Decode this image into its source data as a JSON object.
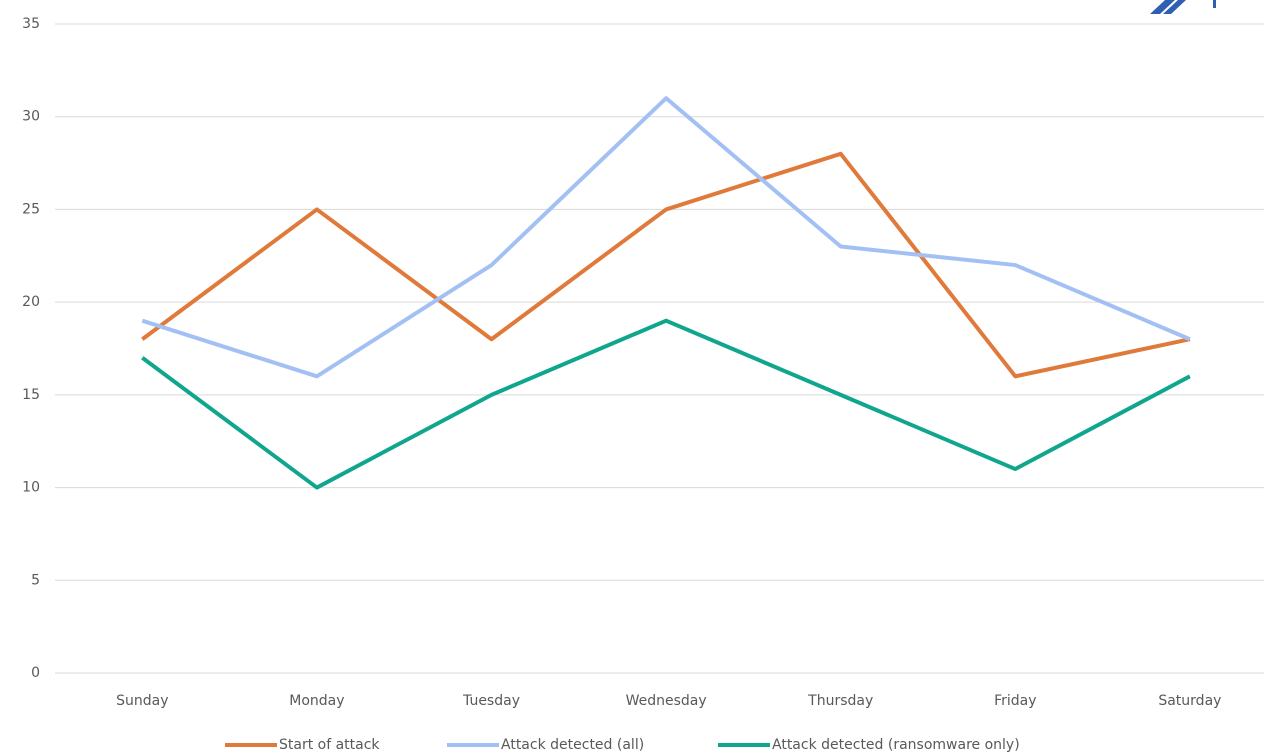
{
  "chart_data": {
    "type": "line",
    "categories": [
      "Sunday",
      "Monday",
      "Tuesday",
      "Wednesday",
      "Thursday",
      "Friday",
      "Saturday"
    ],
    "series": [
      {
        "name": "Start of attack",
        "color": "#e07a3a",
        "values": [
          18,
          25,
          18,
          25,
          28,
          16,
          18
        ]
      },
      {
        "name": "Attack detected (all)",
        "color": "#a3c0f5",
        "values": [
          19,
          16,
          22,
          31,
          23,
          22,
          18
        ]
      },
      {
        "name": "Attack detected (ransomware only)",
        "color": "#10a68e",
        "values": [
          17,
          10,
          15,
          19,
          15,
          11,
          16
        ]
      }
    ],
    "ylim": [
      0,
      35
    ],
    "yticks": [
      0,
      5,
      10,
      15,
      20,
      25,
      30,
      35
    ],
    "grid": true,
    "legend": "bottom"
  }
}
